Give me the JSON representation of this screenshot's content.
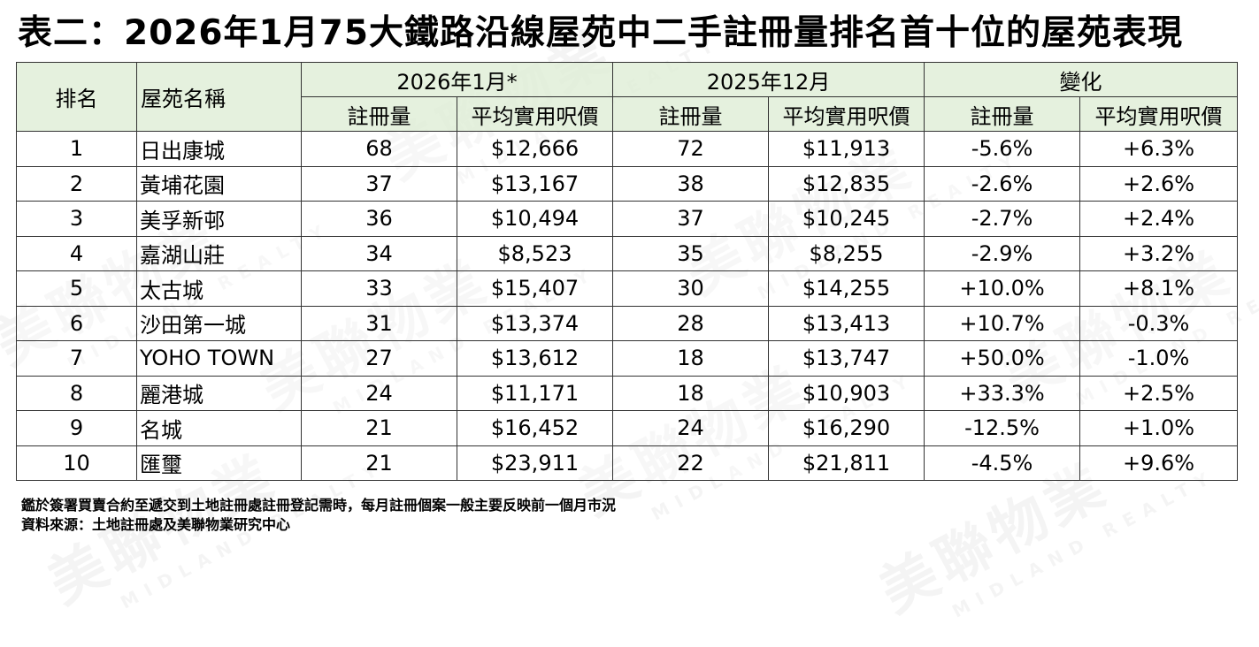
{
  "title": "表二：2026年1月75大鐵路沿線屋苑中二手註冊量排名首十位的屋苑表現",
  "header": {
    "rank": "排名",
    "estate": "屋苑名稱",
    "group_jan2026": "2026年1月*",
    "group_dec2025": "2025年12月",
    "group_change": "變化",
    "registrations": "註冊量",
    "avg_price": "平均實用呎價"
  },
  "rows": [
    {
      "rank": "1",
      "estate": "日出康城",
      "jan_reg": "68",
      "jan_price": "$12,666",
      "dec_reg": "72",
      "dec_price": "$11,913",
      "chg_reg": "-5.6%",
      "chg_price": "+6.3%"
    },
    {
      "rank": "2",
      "estate": "黃埔花園",
      "jan_reg": "37",
      "jan_price": "$13,167",
      "dec_reg": "38",
      "dec_price": "$12,835",
      "chg_reg": "-2.6%",
      "chg_price": "+2.6%"
    },
    {
      "rank": "3",
      "estate": "美孚新邨",
      "jan_reg": "36",
      "jan_price": "$10,494",
      "dec_reg": "37",
      "dec_price": "$10,245",
      "chg_reg": "-2.7%",
      "chg_price": "+2.4%"
    },
    {
      "rank": "4",
      "estate": "嘉湖山莊",
      "jan_reg": "34",
      "jan_price": "$8,523",
      "dec_reg": "35",
      "dec_price": "$8,255",
      "chg_reg": "-2.9%",
      "chg_price": "+3.2%"
    },
    {
      "rank": "5",
      "estate": "太古城",
      "jan_reg": "33",
      "jan_price": "$15,407",
      "dec_reg": "30",
      "dec_price": "$14,255",
      "chg_reg": "+10.0%",
      "chg_price": "+8.1%"
    },
    {
      "rank": "6",
      "estate": "沙田第一城",
      "jan_reg": "31",
      "jan_price": "$13,374",
      "dec_reg": "28",
      "dec_price": "$13,413",
      "chg_reg": "+10.7%",
      "chg_price": "-0.3%"
    },
    {
      "rank": "7",
      "estate": "YOHO TOWN",
      "jan_reg": "27",
      "jan_price": "$13,612",
      "dec_reg": "18",
      "dec_price": "$13,747",
      "chg_reg": "+50.0%",
      "chg_price": "-1.0%"
    },
    {
      "rank": "8",
      "estate": "麗港城",
      "jan_reg": "24",
      "jan_price": "$11,171",
      "dec_reg": "18",
      "dec_price": "$10,903",
      "chg_reg": "+33.3%",
      "chg_price": "+2.5%"
    },
    {
      "rank": "9",
      "estate": "名城",
      "jan_reg": "21",
      "jan_price": "$16,452",
      "dec_reg": "24",
      "dec_price": "$16,290",
      "chg_reg": "-12.5%",
      "chg_price": "+1.0%"
    },
    {
      "rank": "10",
      "estate": "匯璽",
      "jan_reg": "21",
      "jan_price": "$23,911",
      "dec_reg": "22",
      "dec_price": "$21,811",
      "chg_reg": "-4.5%",
      "chg_price": "+9.6%"
    }
  ],
  "notes": {
    "line1": "鑑於簽署買賣合約至遞交到土地註冊處註冊登記需時，每月註冊個案一般主要反映前一個月市況",
    "line2": "資料來源：土地註冊處及美聯物業研究中心"
  },
  "watermark": {
    "brand": "美聯物業",
    "english": "MIDLAND REALTY"
  },
  "colors": {
    "header_bg": "#dfeed7",
    "border": "#333333",
    "text": "#000000"
  }
}
